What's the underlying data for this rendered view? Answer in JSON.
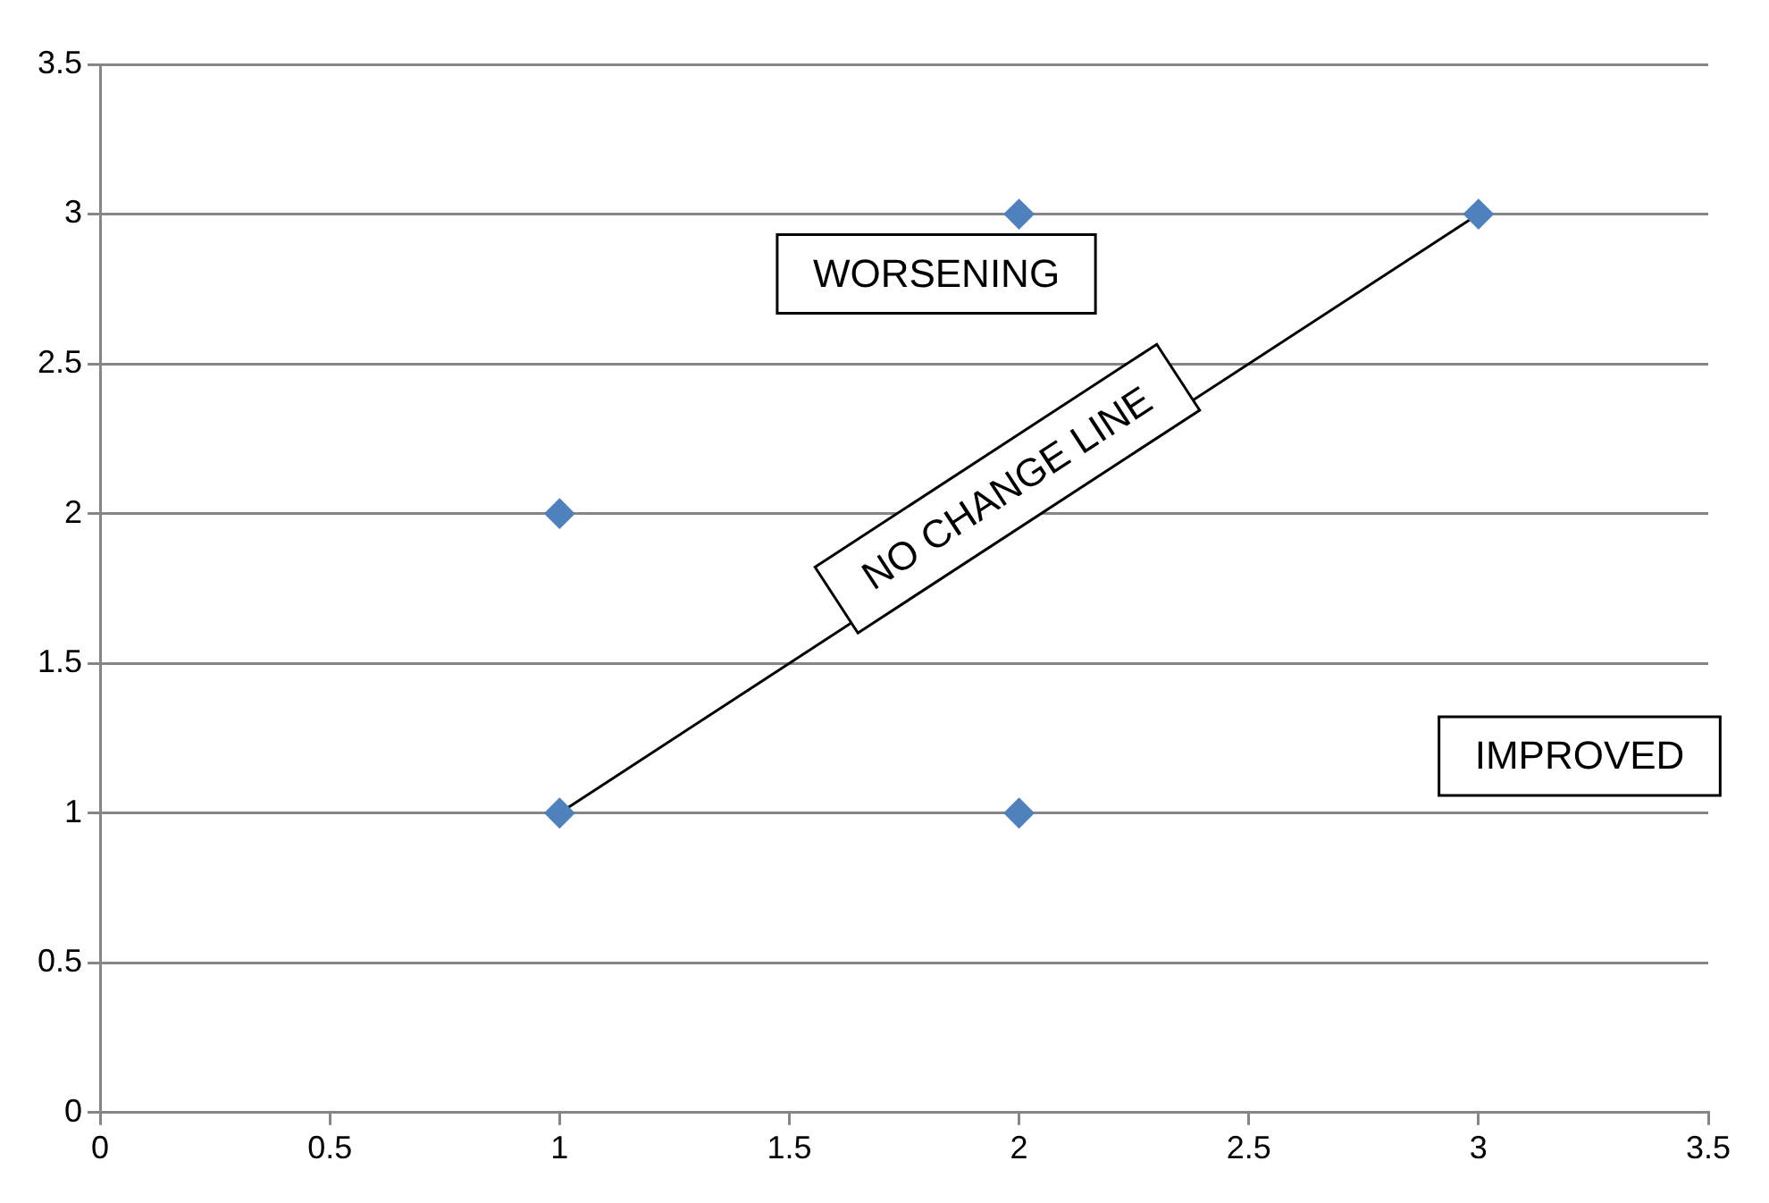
{
  "chart_data": {
    "type": "scatter",
    "xlim": [
      0,
      3.5
    ],
    "xticks": [
      0,
      0.5,
      1,
      1.5,
      2,
      2.5,
      3,
      3.5
    ],
    "ylim": [
      0,
      3.5
    ],
    "yticks": [
      0,
      0.5,
      1,
      1.5,
      2,
      2.5,
      3,
      3.5
    ],
    "grid": "y",
    "legend": false,
    "marker": "diamond",
    "series": [
      {
        "color": "#4f81bd",
        "x": [
          1,
          1,
          2,
          2,
          3
        ],
        "values": [
          2,
          1,
          3,
          1,
          3
        ]
      },
      {
        "type": "line",
        "name": "NO CHANGE LINE",
        "color": "#000000",
        "marker": "none",
        "x": [
          1,
          3
        ],
        "values": [
          1,
          3
        ]
      }
    ],
    "annotations": [
      "WORSENING",
      "IMPROVED"
    ]
  }
}
